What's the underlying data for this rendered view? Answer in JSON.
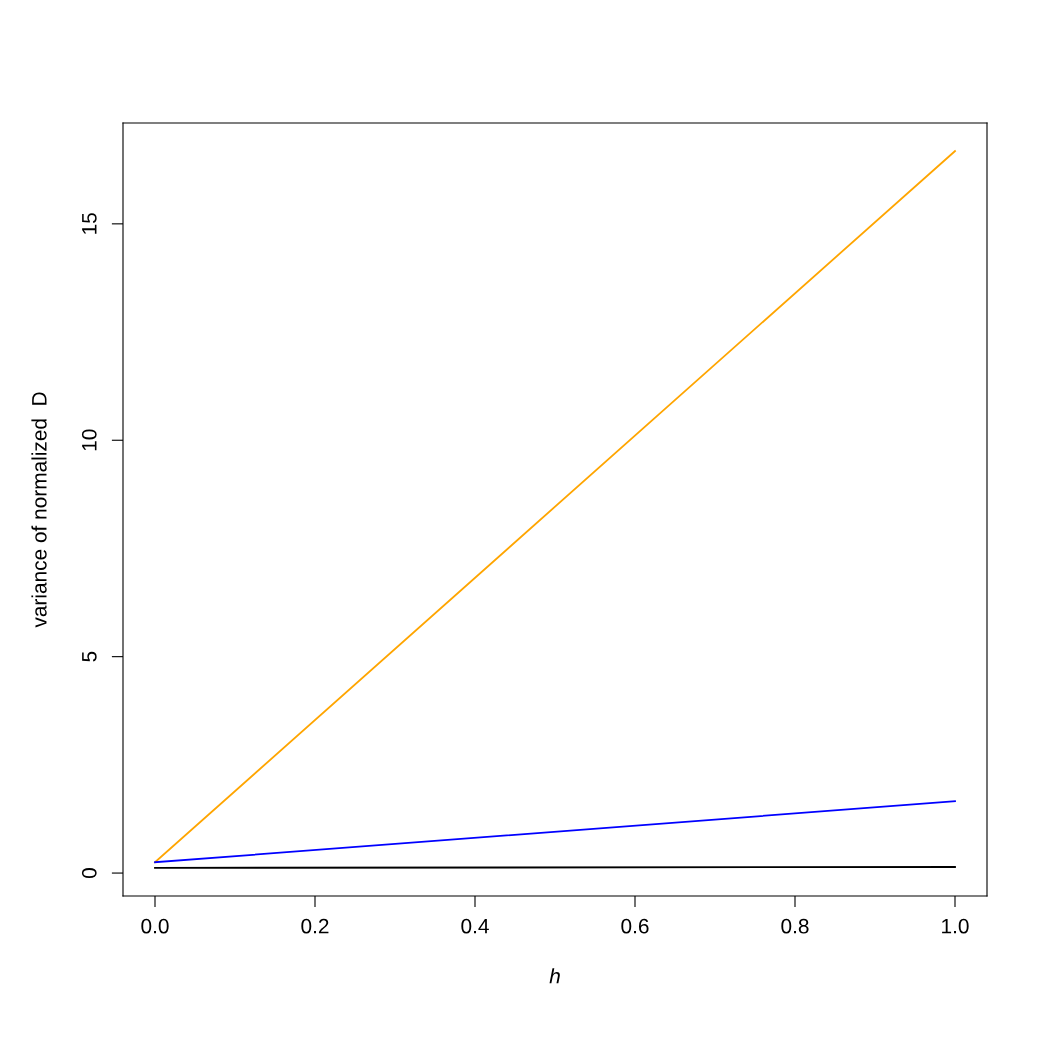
{
  "chart_data": {
    "type": "line",
    "xlabel": "h",
    "ylabel": "variance of normalized  D",
    "x": [
      0,
      1
    ],
    "series": [
      {
        "color": "#ffa500",
        "values": [
          0.25,
          16.68
        ]
      },
      {
        "color": "#0000ff",
        "values": [
          0.25,
          1.66
        ]
      },
      {
        "color": "#000000",
        "values": [
          0.12,
          0.14
        ]
      }
    ],
    "xlim": [
      -0.04,
      1.04
    ],
    "ylim": [
      -0.53,
      17.33
    ],
    "xticks": [
      {
        "value": 0,
        "label": "0.0"
      },
      0.2,
      0.4,
      0.6,
      0.8,
      {
        "value": 1,
        "label": "1.0"
      }
    ],
    "yticks": [
      0,
      5,
      10,
      15
    ],
    "grid": false,
    "legend": false,
    "marker": "none",
    "line_style": "solid"
  }
}
